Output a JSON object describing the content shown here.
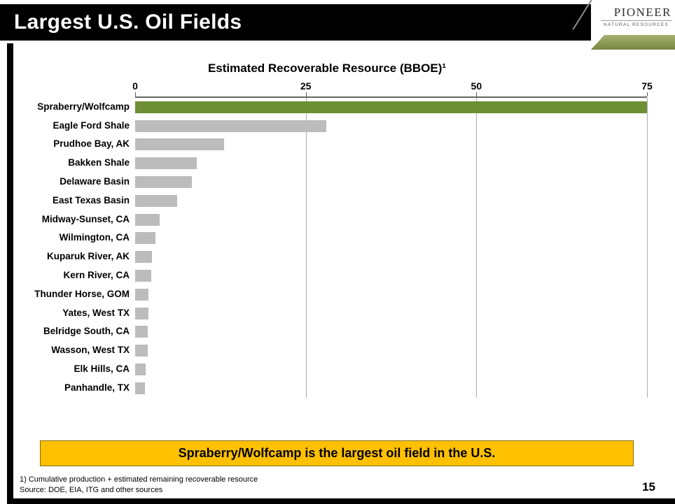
{
  "slide": {
    "title": "Largest U.S. Oil Fields",
    "page_number": "15",
    "footnotes": [
      "1) Cumulative production + estimated remaining recoverable resource",
      "Source: DOE, EIA, ITG and other sources"
    ]
  },
  "logo": {
    "name": "PIONEER",
    "subtitle": "NATURAL RESOURCES"
  },
  "callout": {
    "text": "Spraberry/Wolfcamp is the largest oil field in the U.S."
  },
  "colors": {
    "header_bg": "#000000",
    "highlight_bar": "#6d8e33",
    "default_bar": "#bcbcbc",
    "callout_bg": "#ffc000",
    "callout_border": "#8a6d00",
    "logo_band": "#8b9a55"
  },
  "chart_data": {
    "type": "bar",
    "orientation": "horizontal",
    "title": "Estimated Recoverable Resource (BBOE)¹",
    "categories": [
      "Spraberry/Wolfcamp",
      "Eagle Ford Shale",
      "Prudhoe Bay, AK",
      "Bakken Shale",
      "Delaware Basin",
      "East Texas Basin",
      "Midway-Sunset, CA",
      "Wilmington, CA",
      "Kuparuk River, AK",
      "Kern River, CA",
      "Thunder Horse, GOM",
      "Yates, West TX",
      "Belridge South, CA",
      "Wasson, West TX",
      "Elk Hills, CA",
      "Panhandle, TX"
    ],
    "values": [
      75,
      28,
      13,
      9,
      8.3,
      6.2,
      3.6,
      3.0,
      2.5,
      2.4,
      2.0,
      1.9,
      1.8,
      1.8,
      1.5,
      1.4
    ],
    "xlim": [
      0,
      75
    ],
    "xticks": [
      0,
      25,
      50,
      75
    ],
    "grid": true,
    "legend": false,
    "highlight_index": 0,
    "highlight_color": "#6d8e33",
    "bar_color": "#bcbcbc",
    "units": "BBOE"
  }
}
